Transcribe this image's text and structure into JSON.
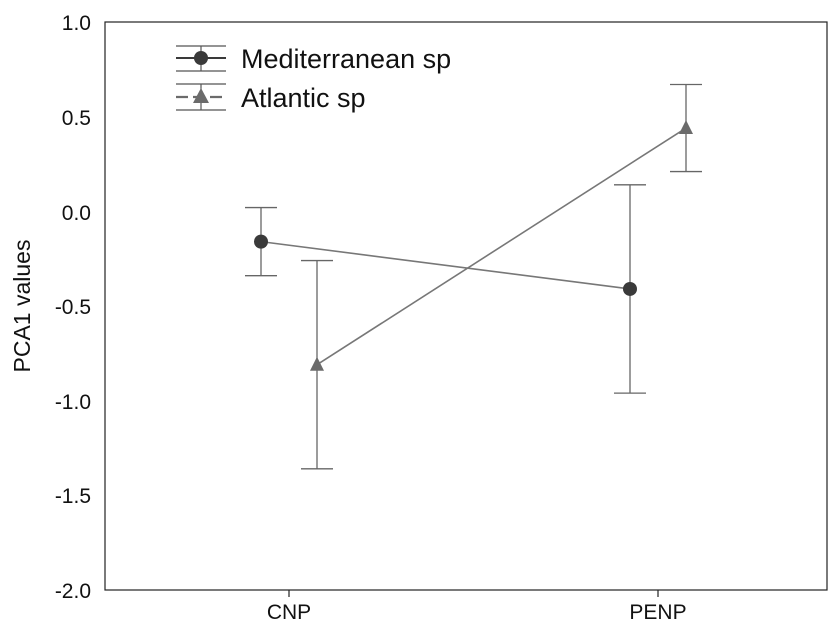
{
  "chart_data": {
    "type": "line",
    "categories": [
      "CNP",
      "PENP"
    ],
    "xlabel": "",
    "ylabel": "PCA1 values",
    "ylim": [
      -2.0,
      1.0
    ],
    "yticks": [
      "1.0",
      "0.5",
      "0.0",
      "-0.5",
      "-1.0",
      "-1.5",
      "-2.0"
    ],
    "grid": false,
    "legend_position": "top-left",
    "series": [
      {
        "name": "Mediterranean sp",
        "marker": "circle",
        "color": "#3a3a3a",
        "values": [
          -0.16,
          -0.41
        ],
        "error_low": [
          -0.34,
          -0.96
        ],
        "error_high": [
          0.02,
          0.14
        ]
      },
      {
        "name": "Atlantic sp",
        "marker": "triangle",
        "color": "#6b6b6b",
        "values": [
          -0.81,
          0.44
        ],
        "error_low": [
          -1.36,
          0.21
        ],
        "error_high": [
          -0.26,
          0.67
        ]
      }
    ]
  }
}
